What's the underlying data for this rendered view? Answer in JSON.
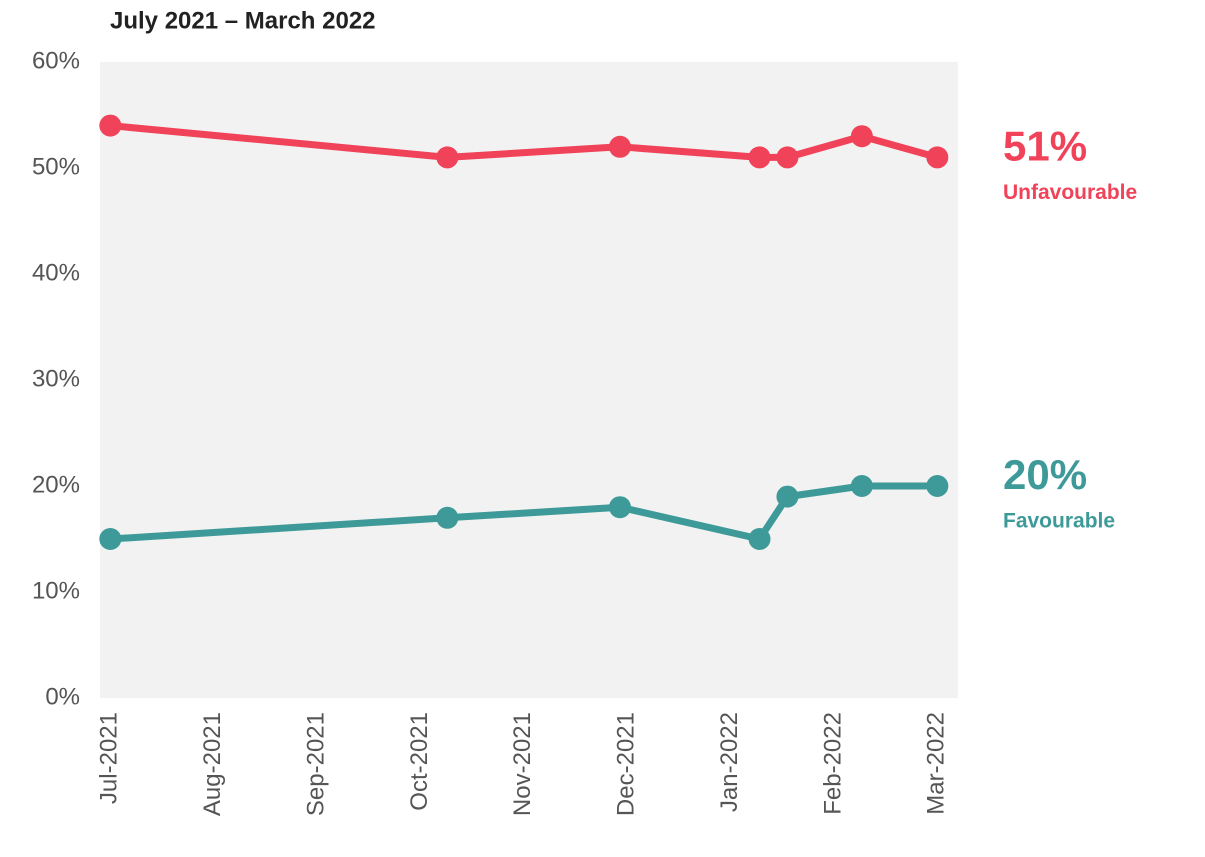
{
  "chart_data": {
    "type": "line",
    "title": "July 2021 – March 2022",
    "x": [
      0,
      3.26,
      4.93,
      6.28,
      6.55,
      7.27,
      8.0
    ],
    "xlim": [
      -0.1,
      8.2
    ],
    "xticks": [
      {
        "value": 0,
        "label": "Jul-2021"
      },
      {
        "value": 1,
        "label": "Aug-2021"
      },
      {
        "value": 2,
        "label": "Sep-2021"
      },
      {
        "value": 3,
        "label": "Oct-2021"
      },
      {
        "value": 4,
        "label": "Nov-2021"
      },
      {
        "value": 5,
        "label": "Dec-2021"
      },
      {
        "value": 6,
        "label": "Jan-2022"
      },
      {
        "value": 7,
        "label": "Feb-2022"
      },
      {
        "value": 8,
        "label": "Mar-2022"
      }
    ],
    "ylim": [
      0,
      60
    ],
    "yticks": [
      {
        "value": 0,
        "label": "0%"
      },
      {
        "value": 10,
        "label": "10%"
      },
      {
        "value": 20,
        "label": "20%"
      },
      {
        "value": 30,
        "label": "30%"
      },
      {
        "value": 40,
        "label": "40%"
      },
      {
        "value": 50,
        "label": "50%"
      },
      {
        "value": 60,
        "label": "60%"
      }
    ],
    "plot_background": "#f2f2f2",
    "series": [
      {
        "name": "Unfavourable",
        "color": "#f0435a",
        "values": [
          54,
          51,
          52,
          51,
          51,
          53,
          51
        ],
        "end_label": "51%"
      },
      {
        "name": "Favourable",
        "color": "#3d9a98",
        "values": [
          15,
          17,
          18,
          15,
          19,
          20,
          20
        ],
        "end_label": "20%"
      }
    ]
  }
}
